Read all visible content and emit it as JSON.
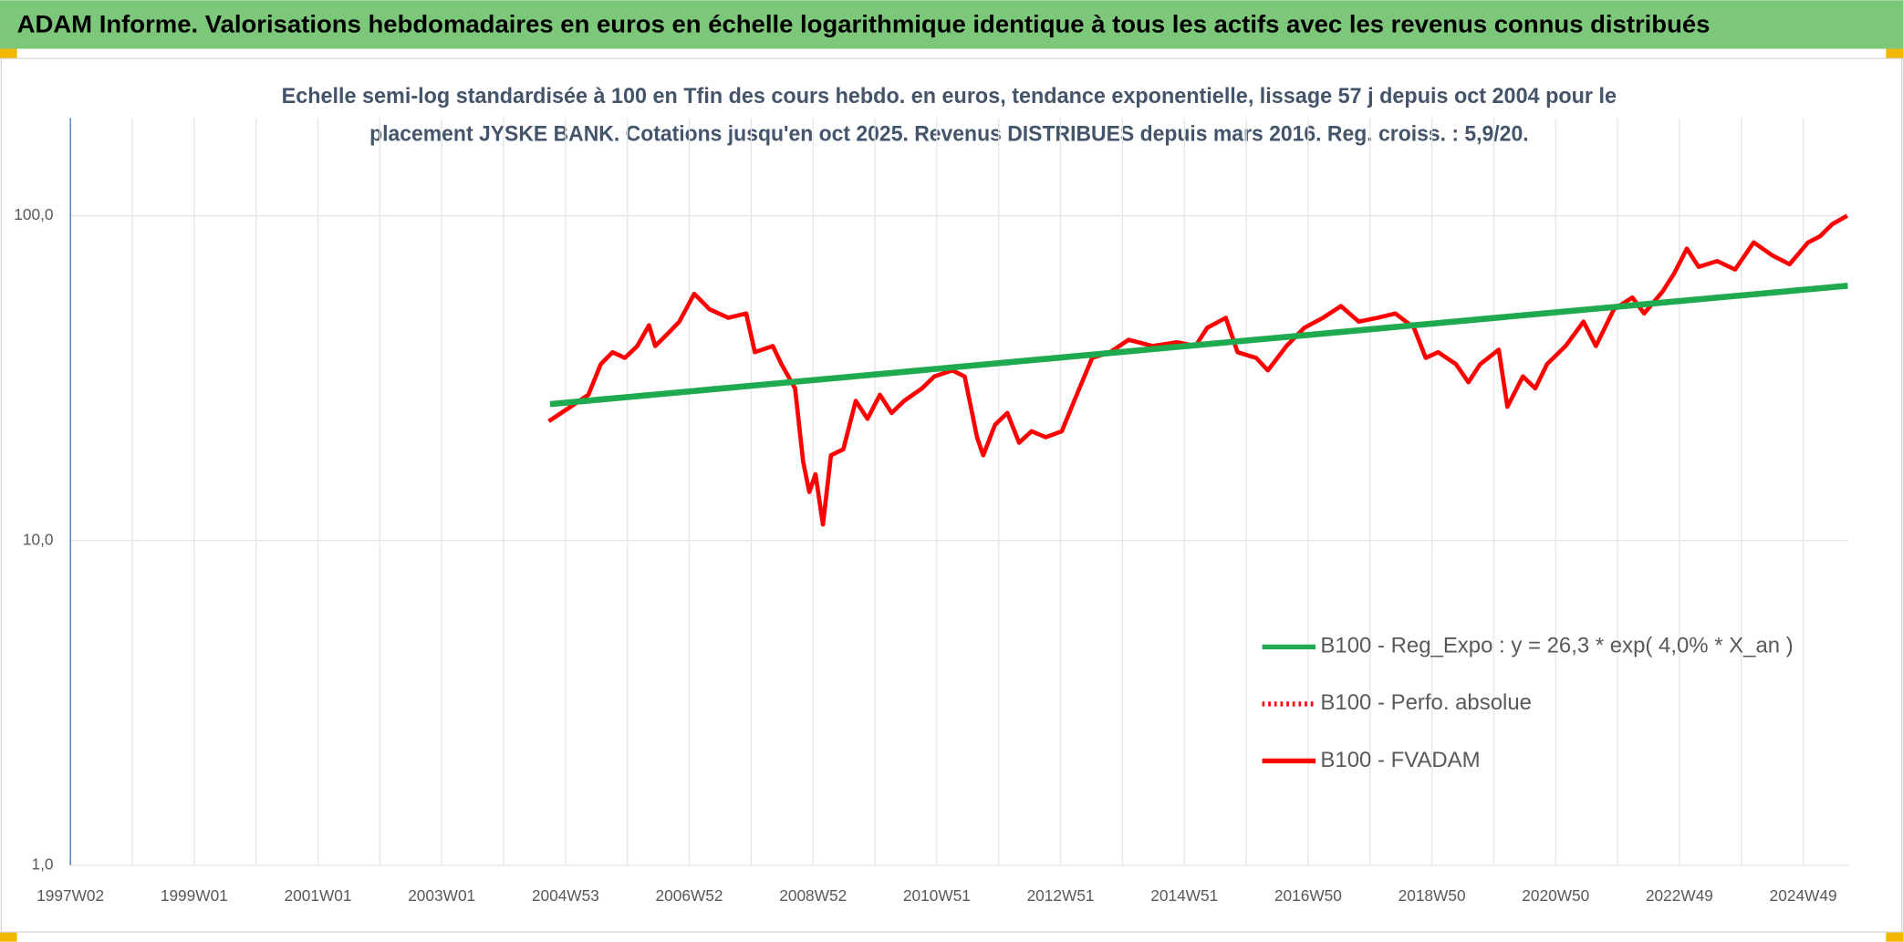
{
  "header": {
    "title": "ADAM Informe. Valorisations hebdomadaires en euros en échelle logarithmique identique à tous les actifs avec les revenus connus distribués"
  },
  "chart_data": {
    "type": "line",
    "subtitle": [
      "Echelle semi-log standardisée à 100 en Tfin des cours hebdo. en euros, tendance exponentielle, lissage 57 j depuis oct 2004 pour le",
      "placement JYSKE BANK. Cotations jusqu'en oct 2025. Revenus DISTRIBUES depuis mars 2016. Reg. croiss. : 5,9/20."
    ],
    "log_scale": true,
    "grid": true,
    "legend": "lower right",
    "xlim": [
      1997,
      2025.73
    ],
    "xticks": [
      {
        "value": 1997.0,
        "label": "1997W02"
      },
      {
        "value": 1999.0,
        "label": "1999W01"
      },
      {
        "value": 2001.0,
        "label": "2001W01"
      },
      {
        "value": 2003.0,
        "label": "2003W01"
      },
      {
        "value": 2005.0,
        "label": "2004W53"
      },
      {
        "value": 2007.0,
        "label": "2006W52"
      },
      {
        "value": 2009.0,
        "label": "2008W52"
      },
      {
        "value": 2011.0,
        "label": "2010W51"
      },
      {
        "value": 2013.0,
        "label": "2012W51"
      },
      {
        "value": 2015.0,
        "label": "2014W51"
      },
      {
        "value": 2017.0,
        "label": "2016W50"
      },
      {
        "value": 2019.0,
        "label": "2018W50"
      },
      {
        "value": 2021.0,
        "label": "2020W50"
      },
      {
        "value": 2023.0,
        "label": "2022W49"
      },
      {
        "value": 2025.0,
        "label": "2024W49"
      }
    ],
    "ylim": [
      1,
      200
    ],
    "yticks": [
      {
        "value": 1,
        "label": "1,0"
      },
      {
        "value": 10,
        "label": "10,0"
      },
      {
        "value": 100,
        "label": "100,0"
      }
    ],
    "series": [
      {
        "name": "B100 - Reg_Expo : y = 26,3 * exp( 4,0% *  X_an )",
        "color": "#1faa4f",
        "style": "solid",
        "x": [
          2004.75,
          2025.72
        ],
        "values": [
          26.3,
          60.9
        ]
      },
      {
        "name": "B100 - Perfo. absolue",
        "color": "#ff0000",
        "style": "dotted",
        "x": [],
        "values": []
      },
      {
        "name": "B100 - FVADAM",
        "color": "#ff0000",
        "style": "solid",
        "x": [
          2004.73,
          2005.08,
          2005.37,
          2005.57,
          2005.76,
          2005.96,
          2006.16,
          2006.35,
          2006.45,
          2006.65,
          2006.84,
          2007.08,
          2007.33,
          2007.63,
          2007.92,
          2008.06,
          2008.35,
          2008.49,
          2008.71,
          2008.84,
          2008.94,
          2009.04,
          2009.16,
          2009.29,
          2009.49,
          2009.69,
          2009.88,
          2010.08,
          2010.27,
          2010.47,
          2010.76,
          2010.96,
          2011.25,
          2011.45,
          2011.65,
          2011.75,
          2011.94,
          2012.14,
          2012.33,
          2012.53,
          2012.76,
          2013.02,
          2013.22,
          2013.51,
          2013.8,
          2014.1,
          2014.49,
          2014.88,
          2015.18,
          2015.37,
          2015.67,
          2015.86,
          2016.16,
          2016.35,
          2016.65,
          2016.94,
          2017.24,
          2017.53,
          2017.82,
          2018.12,
          2018.41,
          2018.71,
          2018.9,
          2019.1,
          2019.39,
          2019.59,
          2019.78,
          2020.08,
          2020.22,
          2020.47,
          2020.67,
          2020.86,
          2021.16,
          2021.45,
          2021.65,
          2021.94,
          2022.24,
          2022.43,
          2022.73,
          2022.92,
          2023.12,
          2023.31,
          2023.61,
          2023.9,
          2024.2,
          2024.49,
          2024.78,
          2025.08,
          2025.27,
          2025.47,
          2025.71
        ],
        "values": [
          23.3,
          25.8,
          28.1,
          34.9,
          38,
          36.5,
          39.7,
          46,
          39.7,
          43.3,
          47.2,
          57.5,
          51.5,
          48.5,
          50,
          38,
          39.7,
          34.9,
          29.4,
          17.5,
          14.1,
          16,
          11.2,
          18.3,
          19.1,
          26.9,
          23.7,
          28.1,
          24.7,
          26.9,
          29.4,
          32,
          33.4,
          32,
          20.8,
          18.3,
          22.7,
          24.7,
          20,
          21.7,
          20.8,
          21.7,
          26.9,
          36.5,
          38,
          41.5,
          39.7,
          40.8,
          39.7,
          45.2,
          48.5,
          38,
          36.5,
          33.4,
          39.7,
          45.2,
          48.5,
          52.7,
          47.2,
          48.5,
          50,
          45.2,
          36.5,
          38,
          34.9,
          30.7,
          34.9,
          38.7,
          25.8,
          32,
          29.4,
          34.9,
          39.7,
          47.2,
          39.7,
          51.5,
          56,
          50,
          58.5,
          66.7,
          79.2,
          69.6,
          72.5,
          68.3,
          82.8,
          75.7,
          70.9,
          82.8,
          86.4,
          94.2,
          100
        ]
      }
    ]
  }
}
